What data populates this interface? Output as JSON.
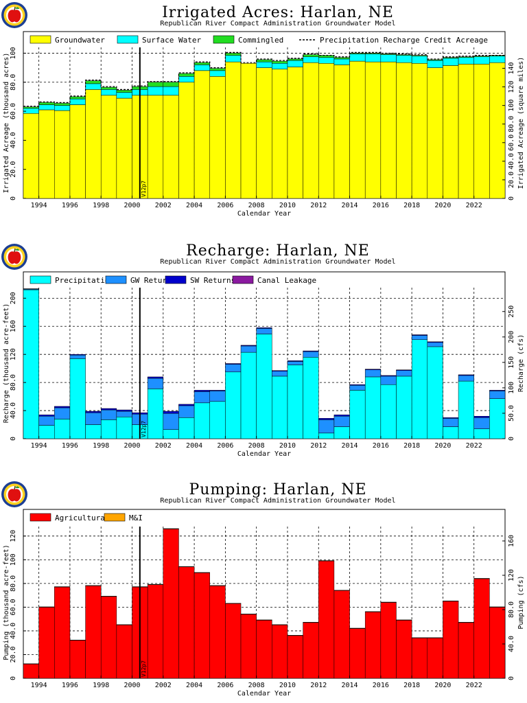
{
  "colors": {
    "groundwater": "#ffff00",
    "surface_water": "#00ffff",
    "commingled": "#22dd22",
    "precipitation": "#00ffff",
    "gw_returns": "#1e90ff",
    "sw_returns": "#0000cc",
    "canal_leakage": "#8b1aa0",
    "agricultural": "#ff0000",
    "mi": "#ffa500"
  },
  "icons": [
    "apple-logo-icon"
  ],
  "chart_data": [
    {
      "type": "bar",
      "stacked": true,
      "title": "Irrigated Acres: Harlan, NE",
      "subtitle": "Republican River Compact Administration Groundwater Model",
      "xlabel": "Calendar Year",
      "ylabel": "Irrigated Acreage (thousand acres)",
      "y2label": "Irrigated Acreage (square miles)",
      "marker_label": "V12p7",
      "marker_year": 2000.5,
      "legend": [
        "Groundwater",
        "Surface Water",
        "Commingled",
        "Precipitation Recharge Credit Acreage"
      ],
      "legend_placement": "top",
      "grid": true,
      "ylim": [
        0,
        104
      ],
      "xlim": [
        1993,
        2024
      ],
      "x_tick_labels": [
        "1994",
        "1996",
        "1998",
        "2000",
        "2002",
        "2004",
        "2006",
        "2008",
        "2010",
        "2012",
        "2014",
        "2016",
        "2018",
        "2020",
        "2022"
      ],
      "y_ticks": [
        0,
        20,
        40,
        60,
        80,
        100
      ],
      "y_tick_labels": [
        "0",
        "20.0",
        "40.0",
        "60.0",
        "80.0",
        "100"
      ],
      "y2_ticks": [
        0,
        20,
        40,
        60,
        80,
        100,
        120,
        140
      ],
      "y2_tick_labels": [
        "0",
        "20.0",
        "40.0",
        "60.0",
        "80.0",
        "100",
        "120",
        "140"
      ],
      "y2_factor": 1.5625,
      "years": [
        1993,
        1994,
        1995,
        1996,
        1997,
        1998,
        1999,
        2000,
        2001,
        2002,
        2003,
        2004,
        2005,
        2006,
        2007,
        2008,
        2009,
        2010,
        2011,
        2012,
        2013,
        2014,
        2015,
        2016,
        2017,
        2018,
        2019,
        2020,
        2021,
        2022,
        2023
      ],
      "series": [
        {
          "name": "Groundwater",
          "values": [
            58.5,
            61,
            60.5,
            64.5,
            75,
            71,
            69,
            71,
            71,
            71,
            80,
            88,
            84,
            94,
            93,
            90,
            89,
            90.5,
            93.5,
            93,
            92,
            94.5,
            94,
            94,
            93.5,
            93,
            90,
            91.5,
            92.5,
            92.5,
            93.5
          ]
        },
        {
          "name": "Surface Water",
          "values": [
            3.5,
            3.5,
            3.5,
            4,
            4,
            4,
            4,
            4,
            6,
            6,
            4,
            4,
            4,
            4.5,
            0,
            4,
            4,
            4.5,
            4,
            4,
            4,
            5,
            5.5,
            5,
            5,
            5,
            5,
            5,
            4.5,
            5,
            4.5
          ]
        },
        {
          "name": "Commingled",
          "values": [
            1,
            1.5,
            1.5,
            1.5,
            2,
            1.5,
            1.5,
            2,
            3,
            3,
            2,
            1.5,
            1.5,
            1.5,
            0,
            1.5,
            1.5,
            1,
            1.5,
            1.5,
            1,
            0.5,
            0.5,
            0.5,
            0.5,
            0.5,
            0.5,
            0.5,
            0.5,
            0.5,
            0.5
          ]
        },
        {
          "name": "Precipitation Recharge Credit Acreage",
          "values": [
            63.5,
            66.5,
            66,
            70.5,
            81.5,
            77,
            75,
            77.5,
            80.5,
            80.5,
            86.5,
            94,
            90,
            100.5,
            93.5,
            96,
            95,
            96.5,
            99.5,
            98.5,
            97.5,
            100.5,
            100.5,
            100,
            99.5,
            99,
            96,
            97.5,
            98,
            98.5,
            98.5
          ]
        }
      ]
    },
    {
      "type": "bar",
      "stacked": true,
      "title": "Recharge: Harlan, NE",
      "subtitle": "Republican River Compact Administration Groundwater Model",
      "xlabel": "Calendar Year",
      "ylabel": "Recharge (thousand acre-feet)",
      "y2label": "Recharge (cfs)",
      "marker_label": "V12p7",
      "marker_year": 2000.5,
      "legend": [
        "Precipitation",
        "GW Returns",
        "SW Returns",
        "Canal Leakage"
      ],
      "legend_placement": "top",
      "grid": true,
      "ylim": [
        0,
        215
      ],
      "xlim": [
        1993,
        2024
      ],
      "x_tick_labels": [
        "1994",
        "1996",
        "1998",
        "2000",
        "2002",
        "2004",
        "2006",
        "2008",
        "2010",
        "2012",
        "2014",
        "2016",
        "2018",
        "2020",
        "2022"
      ],
      "y_ticks": [
        0,
        40,
        80,
        120,
        160,
        200
      ],
      "y_tick_labels": [
        "0",
        "40.0",
        "80.0",
        "120",
        "160",
        "200"
      ],
      "y2_ticks": [
        0,
        50,
        100,
        150,
        200,
        250
      ],
      "y2_tick_labels": [
        "0",
        "50.0",
        "100",
        "150",
        "200",
        "250"
      ],
      "y2_factor": 1.381,
      "years": [
        1993,
        1994,
        1995,
        1996,
        1997,
        1998,
        1999,
        2000,
        2001,
        2002,
        2003,
        2004,
        2005,
        2006,
        2007,
        2008,
        2009,
        2010,
        2011,
        2012,
        2013,
        2014,
        2015,
        2016,
        2017,
        2018,
        2019,
        2020,
        2021,
        2022,
        2023
      ],
      "series": [
        {
          "name": "Precipitation",
          "values": [
            212,
            19,
            28,
            114,
            20,
            27,
            31,
            20,
            71,
            13,
            30,
            51,
            53,
            95,
            123,
            149,
            89,
            105,
            116,
            8,
            17,
            69,
            88,
            77,
            89,
            141,
            131,
            17,
            82,
            14,
            57
          ]
        },
        {
          "name": "GW Returns",
          "values": [
            1,
            13,
            16,
            5,
            17,
            14,
            8,
            15,
            15,
            23,
            17,
            16,
            15,
            11,
            9,
            8,
            7,
            5,
            8,
            19,
            15,
            7,
            10,
            12,
            8,
            6,
            6,
            12,
            8,
            16,
            11
          ]
        },
        {
          "name": "SW Returns",
          "values": [
            0.5,
            2,
            2,
            1,
            2,
            2,
            2,
            2,
            2,
            3,
            2,
            2,
            1,
            1,
            1,
            1,
            1,
            1,
            1,
            2,
            2,
            1,
            1,
            1,
            1,
            1,
            1,
            1,
            1,
            2,
            1
          ]
        },
        {
          "name": "Canal Leakage",
          "values": [
            0,
            0,
            0,
            0,
            0,
            0,
            0,
            0,
            0,
            0,
            0,
            0,
            0,
            0,
            0,
            0,
            0,
            0,
            0,
            0,
            0,
            0,
            0,
            0,
            0,
            0,
            0,
            0,
            0,
            0,
            0
          ]
        }
      ]
    },
    {
      "type": "bar",
      "stacked": true,
      "title": "Pumping: Harlan, NE",
      "subtitle": "Republican River Compact Administration Groundwater Model",
      "xlabel": "Calendar Year",
      "ylabel": "Pumping (thousand acre-feet)",
      "y2label": "Pumping (cfs)",
      "marker_label": "V12p7",
      "marker_year": 2000.5,
      "legend": [
        "Agricultural",
        "M&I"
      ],
      "legend_placement": "top",
      "grid": true,
      "ylim": [
        0,
        128
      ],
      "xlim": [
        1993,
        2024
      ],
      "x_tick_labels": [
        "1994",
        "1996",
        "1998",
        "2000",
        "2002",
        "2004",
        "2006",
        "2008",
        "2010",
        "2012",
        "2014",
        "2016",
        "2018",
        "2020",
        "2022"
      ],
      "y_ticks": [
        0,
        20,
        40,
        60,
        80,
        100,
        120
      ],
      "y_tick_labels": [
        "0",
        "20.0",
        "40.0",
        "60.0",
        "80.0",
        "100",
        "120"
      ],
      "y2_ticks": [
        0,
        40,
        80,
        120,
        160
      ],
      "y2_tick_labels": [
        "0",
        "40.0",
        "80.0",
        "120",
        "160"
      ],
      "y2_factor": 1.381,
      "years": [
        1993,
        1994,
        1995,
        1996,
        1997,
        1998,
        1999,
        2000,
        2001,
        2002,
        2003,
        2004,
        2005,
        2006,
        2007,
        2008,
        2009,
        2010,
        2011,
        2012,
        2013,
        2014,
        2015,
        2016,
        2017,
        2018,
        2019,
        2020,
        2021,
        2022,
        2023
      ],
      "series": [
        {
          "name": "Agricultural",
          "values": [
            12,
            60,
            77,
            32,
            78,
            69,
            45,
            77,
            79,
            126,
            94,
            89,
            78,
            63,
            54,
            49,
            45,
            36,
            47,
            99,
            74,
            42,
            56,
            64,
            49,
            34,
            34,
            65,
            47,
            84,
            60
          ]
        },
        {
          "name": "M&I",
          "values": [
            0.3,
            0.3,
            0.3,
            0.3,
            0.3,
            0.3,
            0.3,
            0.3,
            0.3,
            0.3,
            0.3,
            0.3,
            0.3,
            0.3,
            0.3,
            0.3,
            0.3,
            0.3,
            0.3,
            0.3,
            0.3,
            0.3,
            0.3,
            0.3,
            0.3,
            0.3,
            0.3,
            0.3,
            0.3,
            0.3,
            0.3
          ]
        }
      ]
    }
  ]
}
